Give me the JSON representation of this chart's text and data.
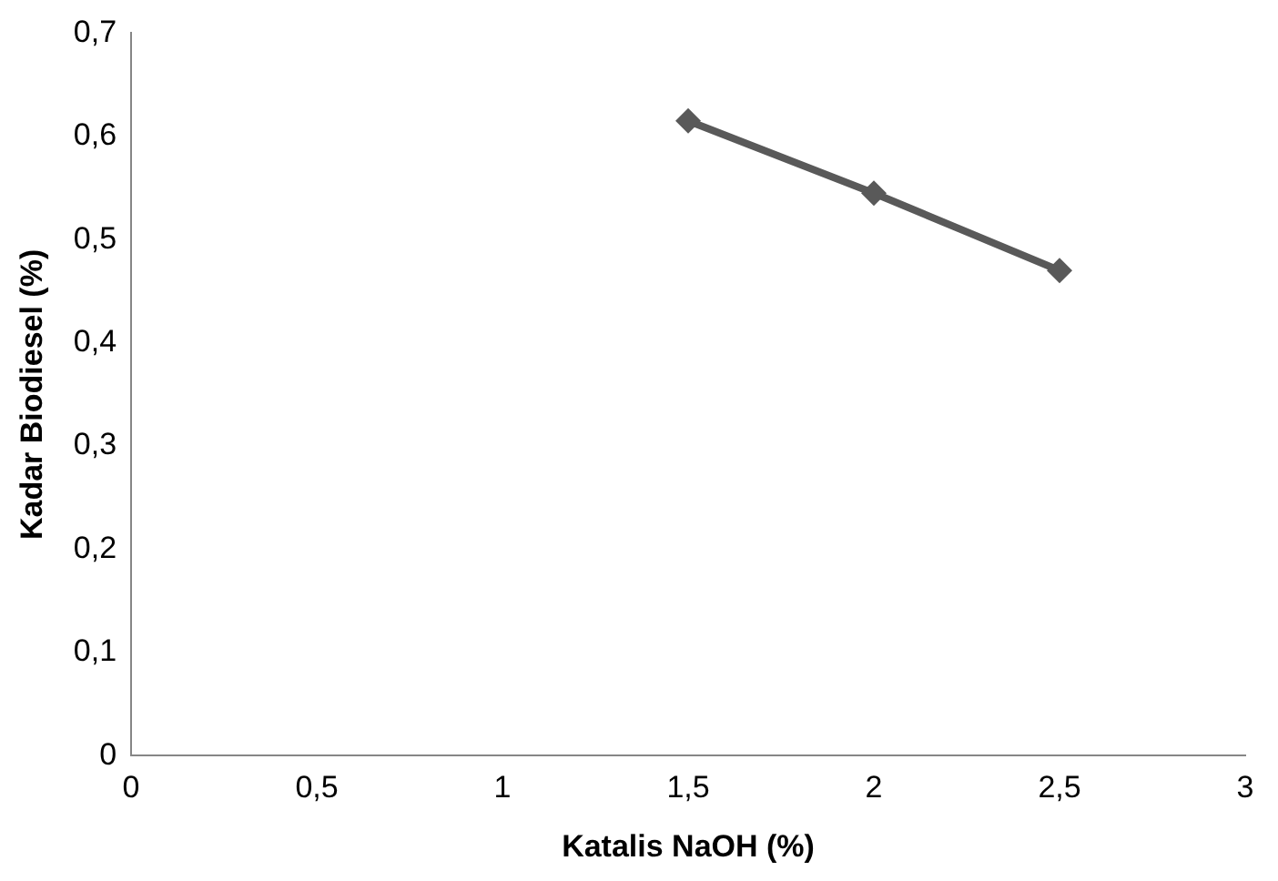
{
  "chart_data": {
    "type": "line",
    "xlabel": "Katalis NaOH (%)",
    "ylabel": "Kadar Biodiesel (%)",
    "x": [
      1.5,
      2,
      2.5
    ],
    "series": [
      {
        "color": "#595959",
        "values": [
          0.615,
          0.545,
          0.47
        ]
      }
    ],
    "xlim": [
      0,
      3
    ],
    "xticks": [
      0,
      {
        "value": 0.5,
        "label": "0,5"
      },
      1,
      {
        "value": 1.5,
        "label": "1,5"
      },
      2,
      {
        "value": 2.5,
        "label": "2,5"
      },
      3
    ],
    "ylim": [
      0,
      0.7
    ],
    "yticks": [
      0,
      {
        "value": 0.1,
        "label": "0,1"
      },
      {
        "value": 0.2,
        "label": "0,2"
      },
      {
        "value": 0.3,
        "label": "0,3"
      },
      {
        "value": 0.4,
        "label": "0,4"
      },
      {
        "value": 0.5,
        "label": "0,5"
      },
      {
        "value": 0.6,
        "label": "0,6"
      },
      {
        "value": 0.7,
        "label": "0,7"
      }
    ],
    "grid": false,
    "legend": false,
    "marker": "diamond",
    "line_style": "solid"
  }
}
